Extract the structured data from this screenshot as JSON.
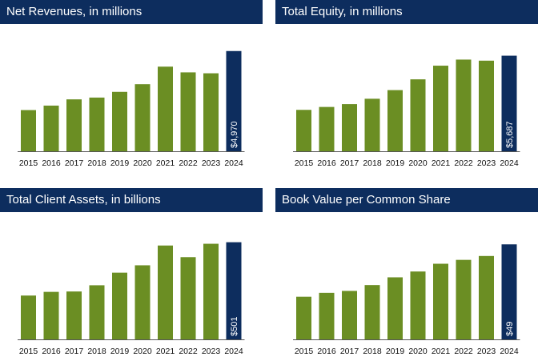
{
  "chart_data": [
    {
      "type": "bar",
      "title": "Net Revenues, in millions",
      "categories": [
        "2015",
        "2016",
        "2017",
        "2018",
        "2019",
        "2020",
        "2021",
        "2022",
        "2023",
        "2024"
      ],
      "values": [
        2043,
        2265,
        2574,
        2663,
        2946,
        3326,
        4196,
        3912,
        3867,
        4970
      ],
      "value_labels": [
        "",
        "",
        "",
        "",
        "",
        "",
        "",
        "",
        "",
        "$4,970"
      ],
      "highlight_index": 9,
      "ylim": [
        0,
        5000
      ],
      "xlabel": "",
      "ylabel": "",
      "grid": false
    },
    {
      "type": "bar",
      "title": "Total Equity, in millions",
      "categories": [
        "2015",
        "2016",
        "2017",
        "2018",
        "2019",
        "2020",
        "2021",
        "2022",
        "2023",
        "2024"
      ],
      "values": [
        2464,
        2637,
        2805,
        3125,
        3640,
        4280,
        5093,
        5455,
        5391,
        5687
      ],
      "value_labels": [
        "",
        "",
        "",
        "",
        "",
        "",
        "",
        "",
        "",
        "$5,687"
      ],
      "highlight_index": 9,
      "ylim": [
        0,
        6000
      ],
      "xlabel": "",
      "ylabel": "",
      "grid": false
    },
    {
      "type": "bar",
      "title": "Total Client Assets, in billions",
      "categories": [
        "2015",
        "2016",
        "2017",
        "2018",
        "2019",
        "2020",
        "2021",
        "2022",
        "2023",
        "2024"
      ],
      "values": [
        226,
        245,
        247,
        279,
        344,
        382,
        484,
        424,
        493,
        501
      ],
      "value_labels": [
        "",
        "",
        "",
        "",
        "",
        "",
        "",
        "",
        "",
        "$501"
      ],
      "highlight_index": 9,
      "ylim": [
        0,
        520
      ],
      "xlabel": "",
      "ylabel": "",
      "grid": false
    },
    {
      "type": "bar",
      "title": "Book Value per Common Share",
      "categories": [
        "2015",
        "2016",
        "2017",
        "2018",
        "2019",
        "2020",
        "2021",
        "2022",
        "2023",
        "2024"
      ],
      "values": [
        22,
        24,
        25,
        28,
        32,
        35,
        39,
        41,
        43,
        49
      ],
      "value_labels": [
        "",
        "",
        "",
        "",
        "",
        "",
        "",
        "",
        "",
        "$49"
      ],
      "highlight_index": 9,
      "ylim": [
        0,
        52
      ],
      "xlabel": "",
      "ylabel": "",
      "grid": false
    }
  ],
  "colors": {
    "bar": "#6b8e23",
    "highlight": "#0d2d5e",
    "header_bg": "#0d2d5e",
    "header_text": "#ffffff"
  }
}
